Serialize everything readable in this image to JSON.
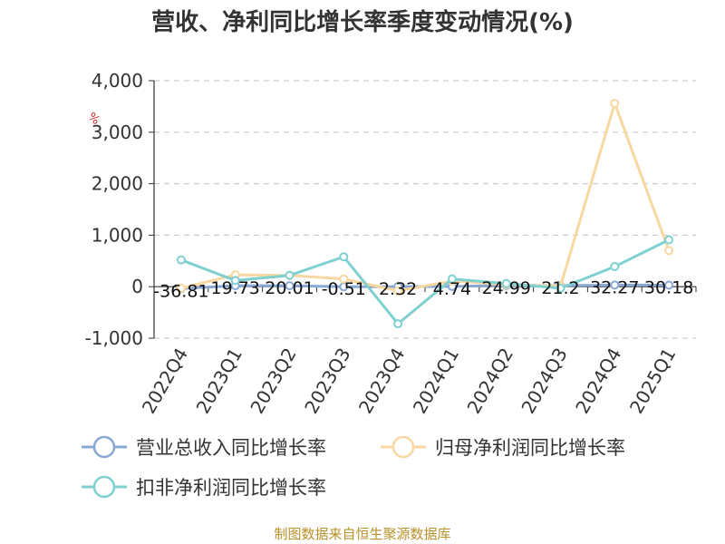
{
  "chart_data": {
    "type": "line",
    "title": "营收、净利同比增长率季度变动情况(%)",
    "ylabel": "%",
    "categories": [
      "2022Q4",
      "2023Q1",
      "2023Q2",
      "2023Q3",
      "2023Q4",
      "2024Q1",
      "2024Q2",
      "2024Q3",
      "2024Q4",
      "2025Q1"
    ],
    "yticks": [
      "4,000",
      "3,000",
      "2,000",
      "1,000",
      "0",
      "-1,000"
    ],
    "ytick_values": [
      4000,
      3000,
      2000,
      1000,
      0,
      -1000
    ],
    "ylim": [
      -1000,
      4000
    ],
    "grid": true,
    "legend_position": "bottom",
    "series": [
      {
        "name": "营业总收入同比增长率",
        "color": "#8aa8d4",
        "values": [
          -36.81,
          19.73,
          20.01,
          -0.51,
          2.32,
          4.74,
          24.99,
          21.2,
          32.27,
          30.18
        ],
        "labels": [
          "-36.81",
          "19.73",
          "20.01",
          "-0.51",
          "2.32",
          "4.74",
          "24.99",
          "21.2",
          "32.27",
          "30.18"
        ]
      },
      {
        "name": "归母净利润同比增长率",
        "color": "#f8d8a0",
        "values": [
          -30,
          230,
          220,
          150,
          -80,
          110,
          40,
          10,
          3560,
          700
        ]
      },
      {
        "name": "扣非净利润同比增长率",
        "color": "#7fd0d0",
        "values": [
          520,
          120,
          220,
          580,
          -720,
          150,
          60,
          -30,
          390,
          910
        ]
      }
    ]
  },
  "source": "制图数据来自恒生聚源数据库"
}
